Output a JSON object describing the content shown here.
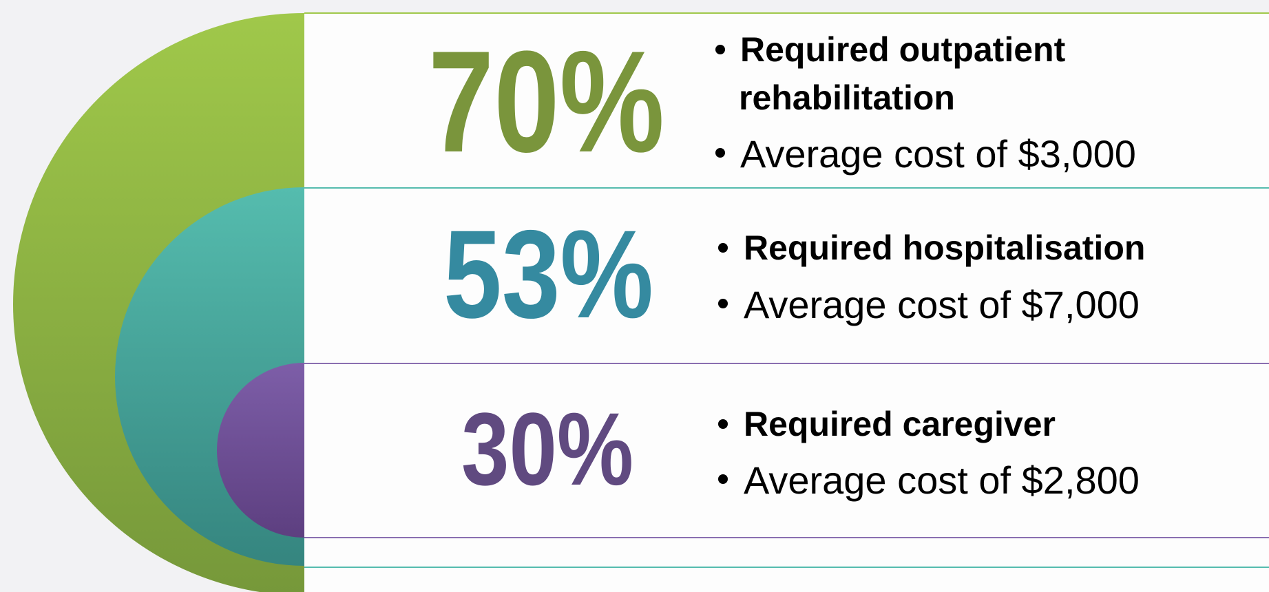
{
  "items": [
    {
      "percent": "70%",
      "lines": [
        "Required outpatient",
        "rehabilitation"
      ],
      "cost": "Average cost of $3,000"
    },
    {
      "percent": "53%",
      "lines": [
        "Required hospitalisation"
      ],
      "cost": "Average cost of $7,000"
    },
    {
      "percent": "30%",
      "lines": [
        "Required caregiver"
      ],
      "cost": "Average cost of $2,800"
    }
  ]
}
